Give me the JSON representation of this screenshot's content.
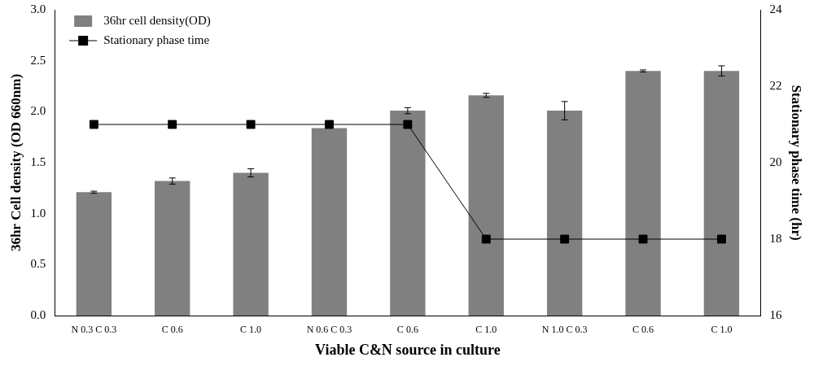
{
  "chart_data": {
    "type": "bar",
    "categories": [
      "N 0.3 C 0.3",
      "C 0.6",
      "C 1.0",
      "N 0.6 C 0.3",
      "C 0.6",
      "C 1.0",
      "N 1.0 C 0.3",
      "C 0.6",
      "C 1.0"
    ],
    "x_label": "Viable C&N source in culture",
    "y_label": "36hr Cell density (OD 660nm)",
    "y2_label": "Stationary phase time (hr)",
    "ylim": [
      0,
      3
    ],
    "yticks": [
      {
        "value": 0,
        "label": "0.0"
      },
      0.5,
      {
        "value": 1,
        "label": "1.0"
      },
      1.5,
      {
        "value": 2,
        "label": "2.0"
      },
      2.5,
      {
        "value": 3,
        "label": "3.0"
      }
    ],
    "y2lim": [
      16,
      24
    ],
    "y2ticks": [
      16,
      18,
      20,
      22,
      24
    ],
    "grid": false,
    "legend": "upper left",
    "series": [
      {
        "name": "36hr cell density(OD)",
        "type": "bar",
        "color": "#808080",
        "values": [
          1.21,
          1.32,
          1.4,
          1.84,
          2.01,
          2.16,
          2.01,
          2.4,
          2.4
        ],
        "errors": [
          0.01,
          0.03,
          0.04,
          0,
          0.03,
          0.02,
          0.09,
          0.01,
          0.05
        ]
      },
      {
        "name": "Stationary phase time",
        "type": "line",
        "axis": "y2",
        "color": "#000000",
        "marker": "square",
        "line_style": "solid",
        "values": [
          21,
          21,
          21,
          21,
          21,
          18,
          18,
          18,
          18
        ]
      }
    ]
  }
}
